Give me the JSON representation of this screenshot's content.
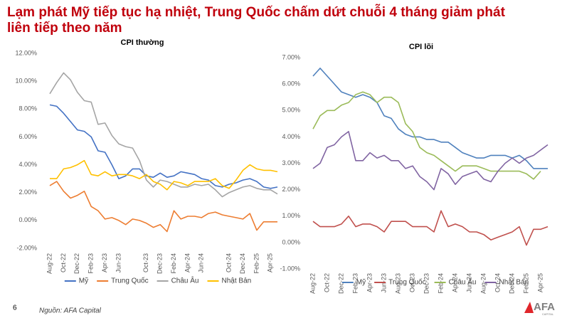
{
  "header": {
    "title": [
      "Lạm phát Mỹ tiếp tục hạ nhiệt, Trung Quốc chấm dứt chuỗi 4 tháng giảm phát",
      "liên tiếp theo năm"
    ]
  },
  "chart_data": [
    {
      "type": "line",
      "title": "CPI thường",
      "categories": [
        "Aug-22",
        null,
        "Oct-22",
        null,
        "Dec-22",
        null,
        "Feb-23",
        null,
        "Apr-23",
        null,
        "Jun-23",
        null,
        null,
        null,
        "Oct-23",
        null,
        "Dec-23",
        null,
        "Feb-24",
        null,
        "Apr-24",
        null,
        "Jun-24",
        null,
        null,
        null,
        "Oct-24",
        null,
        "Dec-24",
        null,
        "Feb-25",
        null,
        "Apr-25",
        null
      ],
      "ylim": [
        -2,
        12
      ],
      "yticks": [
        {
          "value": -2,
          "label": "-2.00%"
        },
        {
          "value": 0,
          "label": "0.00%"
        },
        {
          "value": 2,
          "label": "2.00%"
        },
        {
          "value": 4,
          "label": "4.00%"
        },
        {
          "value": 6,
          "label": "6.00%"
        },
        {
          "value": 8,
          "label": "8.00%"
        },
        {
          "value": 10,
          "label": "10.00%"
        },
        {
          "value": 12,
          "label": "12.00%"
        }
      ],
      "grid": false,
      "series": [
        {
          "name": "Mỹ",
          "color": "#4472c4",
          "values": [
            8.3,
            8.2,
            7.7,
            7.1,
            6.5,
            6.4,
            6.0,
            5.0,
            4.9,
            4.0,
            3.0,
            3.2,
            3.7,
            3.7,
            3.2,
            3.1,
            3.4,
            3.1,
            3.2,
            3.5,
            3.4,
            3.3,
            3.0,
            2.9,
            2.5,
            2.4,
            2.6,
            2.7,
            2.9,
            3.0,
            2.8,
            2.4,
            2.3,
            2.4
          ]
        },
        {
          "name": "Trung Quốc",
          "color": "#ed7d31",
          "values": [
            2.5,
            2.8,
            2.1,
            1.6,
            1.8,
            2.1,
            1.0,
            0.7,
            0.1,
            0.2,
            0.0,
            -0.3,
            0.1,
            0.0,
            -0.2,
            -0.5,
            -0.3,
            -0.8,
            0.7,
            0.1,
            0.3,
            0.3,
            0.2,
            0.5,
            0.6,
            0.4,
            0.3,
            0.2,
            0.1,
            0.5,
            -0.7,
            -0.1,
            -0.1,
            -0.1
          ]
        },
        {
          "name": "Châu Âu",
          "color": "#a5a5a5",
          "values": [
            9.1,
            9.9,
            10.6,
            10.1,
            9.2,
            8.6,
            8.5,
            6.9,
            7.0,
            6.1,
            5.5,
            5.3,
            5.2,
            4.3,
            2.9,
            2.4,
            2.9,
            2.8,
            2.6,
            2.4,
            2.4,
            2.6,
            2.5,
            2.6,
            2.2,
            1.7,
            2.0,
            2.2,
            2.4,
            2.5,
            2.3,
            2.2,
            2.2,
            1.9
          ]
        },
        {
          "name": "Nhật Bản",
          "color": "#ffc000",
          "values": [
            3.0,
            3.0,
            3.7,
            3.8,
            4.0,
            4.3,
            3.3,
            3.2,
            3.5,
            3.2,
            3.3,
            3.3,
            3.2,
            3.0,
            3.3,
            2.8,
            2.6,
            2.2,
            2.8,
            2.7,
            2.5,
            2.8,
            2.8,
            2.8,
            3.0,
            2.5,
            2.3,
            2.9,
            3.6,
            4.0,
            3.7,
            3.6,
            3.6,
            3.5
          ]
        }
      ]
    },
    {
      "type": "line",
      "title": "CPI lõi",
      "categories": [
        "Aug-22",
        null,
        "Oct-22",
        null,
        "Dec-22",
        null,
        "Feb-23",
        null,
        "Apr-23",
        null,
        "Jun-23",
        null,
        "Aug-23",
        null,
        "Oct-23",
        null,
        "Dec-23",
        null,
        "Feb-24",
        null,
        "Apr-24",
        null,
        "Jun-24",
        null,
        "Aug-24",
        null,
        "Oct-24",
        null,
        "Dec-24",
        null,
        "Feb-25",
        null,
        "Apr-25",
        null
      ],
      "ylim": [
        -1,
        7
      ],
      "yticks": [
        {
          "value": -1,
          "label": "-1.00%"
        },
        {
          "value": 0,
          "label": "0.00%"
        },
        {
          "value": 1,
          "label": "1.00%"
        },
        {
          "value": 2,
          "label": "2.00%"
        },
        {
          "value": 3,
          "label": "3.00%"
        },
        {
          "value": 4,
          "label": "4.00%"
        },
        {
          "value": 5,
          "label": "5.00%"
        },
        {
          "value": 6,
          "label": "6.00%"
        },
        {
          "value": 7,
          "label": "7.00%"
        }
      ],
      "grid": false,
      "series": [
        {
          "name": "Mỹ",
          "color": "#4f81bd",
          "values": [
            6.3,
            6.6,
            6.3,
            6.0,
            5.7,
            5.6,
            5.5,
            5.6,
            5.5,
            5.3,
            4.8,
            4.7,
            4.3,
            4.1,
            4.0,
            4.0,
            3.9,
            3.9,
            3.8,
            3.8,
            3.6,
            3.4,
            3.3,
            3.2,
            3.2,
            3.3,
            3.3,
            3.3,
            3.2,
            3.3,
            3.1,
            2.8,
            2.8,
            2.8
          ]
        },
        {
          "name": "Trung Quốc",
          "color": "#c0504d",
          "values": [
            0.8,
            0.6,
            0.6,
            0.6,
            0.7,
            1.0,
            0.6,
            0.7,
            0.7,
            0.6,
            0.4,
            0.8,
            0.8,
            0.8,
            0.6,
            0.6,
            0.6,
            0.4,
            1.2,
            0.6,
            0.7,
            0.6,
            0.4,
            0.4,
            0.3,
            0.1,
            0.2,
            0.3,
            0.4,
            0.6,
            -0.1,
            0.5,
            0.5,
            0.6
          ]
        },
        {
          "name": "Châu Âu",
          "color": "#9bbb59",
          "values": [
            4.3,
            4.8,
            5.0,
            5.0,
            5.2,
            5.3,
            5.6,
            5.7,
            5.6,
            5.3,
            5.5,
            5.5,
            5.3,
            4.5,
            4.2,
            3.6,
            3.4,
            3.3,
            3.1,
            2.9,
            2.7,
            2.9,
            2.9,
            2.9,
            2.8,
            2.7,
            2.7,
            2.7,
            2.7,
            2.7,
            2.6,
            2.4,
            2.7,
            null
          ]
        },
        {
          "name": "Nhật Bản",
          "color": "#8064a2",
          "values": [
            2.8,
            3.0,
            3.6,
            3.7,
            4.0,
            4.2,
            3.1,
            3.1,
            3.4,
            3.2,
            3.3,
            3.1,
            3.1,
            2.8,
            2.9,
            2.5,
            2.3,
            2.0,
            2.8,
            2.6,
            2.2,
            2.5,
            2.6,
            2.7,
            2.4,
            2.3,
            2.7,
            3.0,
            3.2,
            3.0,
            3.2,
            3.3,
            3.5,
            3.7
          ]
        }
      ]
    }
  ],
  "footer": {
    "page": "6",
    "source": "Nguồn: AFA Capital",
    "logo": "AFA",
    "logo_sub": "CAPITAL"
  }
}
